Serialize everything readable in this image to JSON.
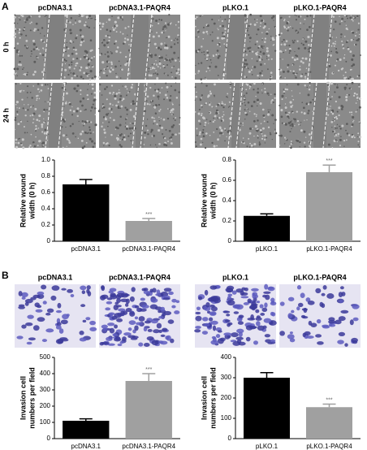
{
  "figure": {
    "A": {
      "label": "A",
      "columns": [
        "pcDNA3.1",
        "pcDNA3.1-PAQR4",
        "pLKO.1",
        "pLKO.1-PAQR4"
      ],
      "rows": [
        "0 h",
        "24 h"
      ]
    },
    "B": {
      "label": "B",
      "columns": [
        "pcDNA3.1",
        "pcDNA3.1-PAQR4",
        "pLKO.1",
        "pLKO.1-PAQR4"
      ]
    }
  },
  "chart_data": [
    {
      "type": "bar",
      "categories": [
        "pcDNA3.1",
        "pcDNA3.1-PAQR4"
      ],
      "values": [
        0.7,
        0.25
      ],
      "errors": [
        0.06,
        0.03
      ],
      "colors": [
        "#000000",
        "#a0a0a0"
      ],
      "ylabel": [
        "Relative wound",
        "width (0 h)"
      ],
      "ylim": [
        0,
        1
      ],
      "yticks": [
        0,
        0.2,
        0.4,
        0.6,
        0.8,
        {
          "value": 1,
          "label": "1.0"
        }
      ],
      "annotations": [
        {
          "category": "pcDNA3.1-PAQR4",
          "text": "***"
        }
      ]
    },
    {
      "type": "bar",
      "categories": [
        "pLKO.1",
        "pLKO.1-PAQR4"
      ],
      "values": [
        0.25,
        0.68
      ],
      "errors": [
        0.02,
        0.07
      ],
      "colors": [
        "#000000",
        "#a0a0a0"
      ],
      "ylabel": [
        "Relative wound",
        "width (0 h)"
      ],
      "ylim": [
        0,
        0.8
      ],
      "yticks": [
        0,
        0.2,
        0.4,
        0.6,
        0.8
      ],
      "annotations": [
        {
          "category": "pLKO.1-PAQR4",
          "text": "***"
        }
      ]
    },
    {
      "type": "bar",
      "categories": [
        "pcDNA3.1",
        "pcDNA3.1-PAQR4"
      ],
      "values": [
        110,
        355
      ],
      "errors": [
        12,
        45
      ],
      "colors": [
        "#000000",
        "#a0a0a0"
      ],
      "ylabel": [
        "Invasion cell",
        "numbers per field"
      ],
      "ylim": [
        0,
        500
      ],
      "yticks": [
        0,
        100,
        200,
        300,
        400,
        500
      ],
      "annotations": [
        {
          "category": "pcDNA3.1-PAQR4",
          "text": "***"
        }
      ]
    },
    {
      "type": "bar",
      "categories": [
        "pLKO.1",
        "pLKO.1-PAQR4"
      ],
      "values": [
        300,
        155
      ],
      "errors": [
        25,
        15
      ],
      "colors": [
        "#000000",
        "#a0a0a0"
      ],
      "ylabel": [
        "Invasion cell",
        "numbers per field"
      ],
      "ylim": [
        0,
        400
      ],
      "yticks": [
        0,
        100,
        200,
        300,
        400
      ],
      "annotations": [
        {
          "category": "pLKO.1-PAQR4",
          "text": "***"
        }
      ]
    }
  ]
}
